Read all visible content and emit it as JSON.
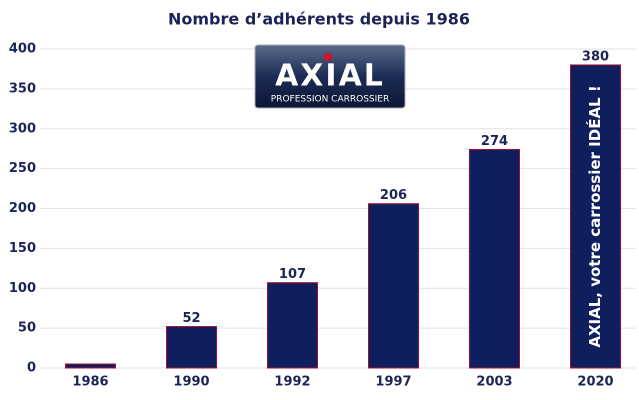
{
  "chart_data": {
    "type": "bar",
    "title": "Nombre d’adhérents depuis 1986",
    "categories": [
      "1986",
      "1990",
      "1992",
      "1997",
      "2003",
      "2020"
    ],
    "values": [
      5,
      52,
      107,
      206,
      274,
      380
    ],
    "value_labels": [
      null,
      "52",
      "107",
      "206",
      "274",
      "380"
    ],
    "color": "#0f1f5e",
    "ylim": [
      0,
      400
    ],
    "yticks": [
      0,
      50,
      100,
      150,
      200,
      250,
      300,
      350,
      400
    ],
    "grid": true,
    "logo": {
      "name": "AXIAL",
      "tagline": "PROFESSION CARROSSIER"
    },
    "annotation": "AXIAL, votre carrossier IDÉAL !"
  }
}
